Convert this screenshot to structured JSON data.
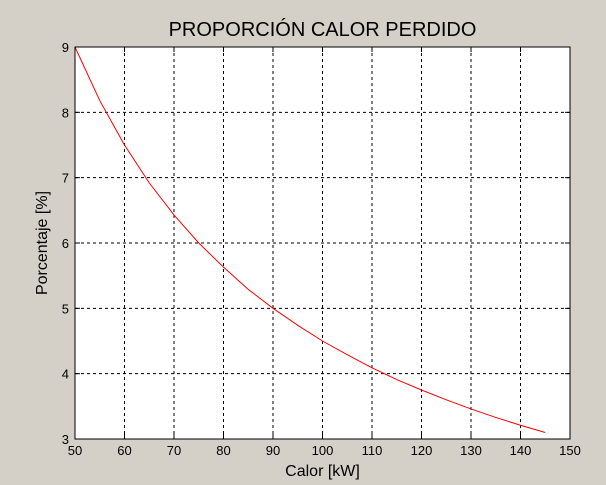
{
  "chart_data": {
    "type": "line",
    "title": "PROPORCIÓN CALOR PERDIDO",
    "xlabel": "Calor [kW]",
    "ylabel": "Porcentaje [%]",
    "xlim": [
      50,
      150
    ],
    "ylim": [
      3,
      9
    ],
    "xticks": [
      50,
      60,
      70,
      80,
      90,
      100,
      110,
      120,
      130,
      140,
      150
    ],
    "yticks": [
      3,
      4,
      5,
      6,
      7,
      8,
      9
    ],
    "grid": true,
    "series": [
      {
        "color": "#ff0000",
        "x": [
          50,
          55,
          60,
          65,
          70,
          75,
          80,
          85,
          90,
          95,
          100,
          105,
          110,
          115,
          120,
          125,
          130,
          135,
          140,
          145
        ],
        "y": [
          9.0,
          8.18,
          7.5,
          6.92,
          6.43,
          6.0,
          5.63,
          5.29,
          5.0,
          4.74,
          4.5,
          4.29,
          4.09,
          3.91,
          3.75,
          3.6,
          3.46,
          3.33,
          3.21,
          3.1
        ]
      }
    ]
  },
  "colors": {
    "figure_background": "#d4d0c8",
    "axes_background": "#ffffff",
    "line": "#ff0000"
  }
}
